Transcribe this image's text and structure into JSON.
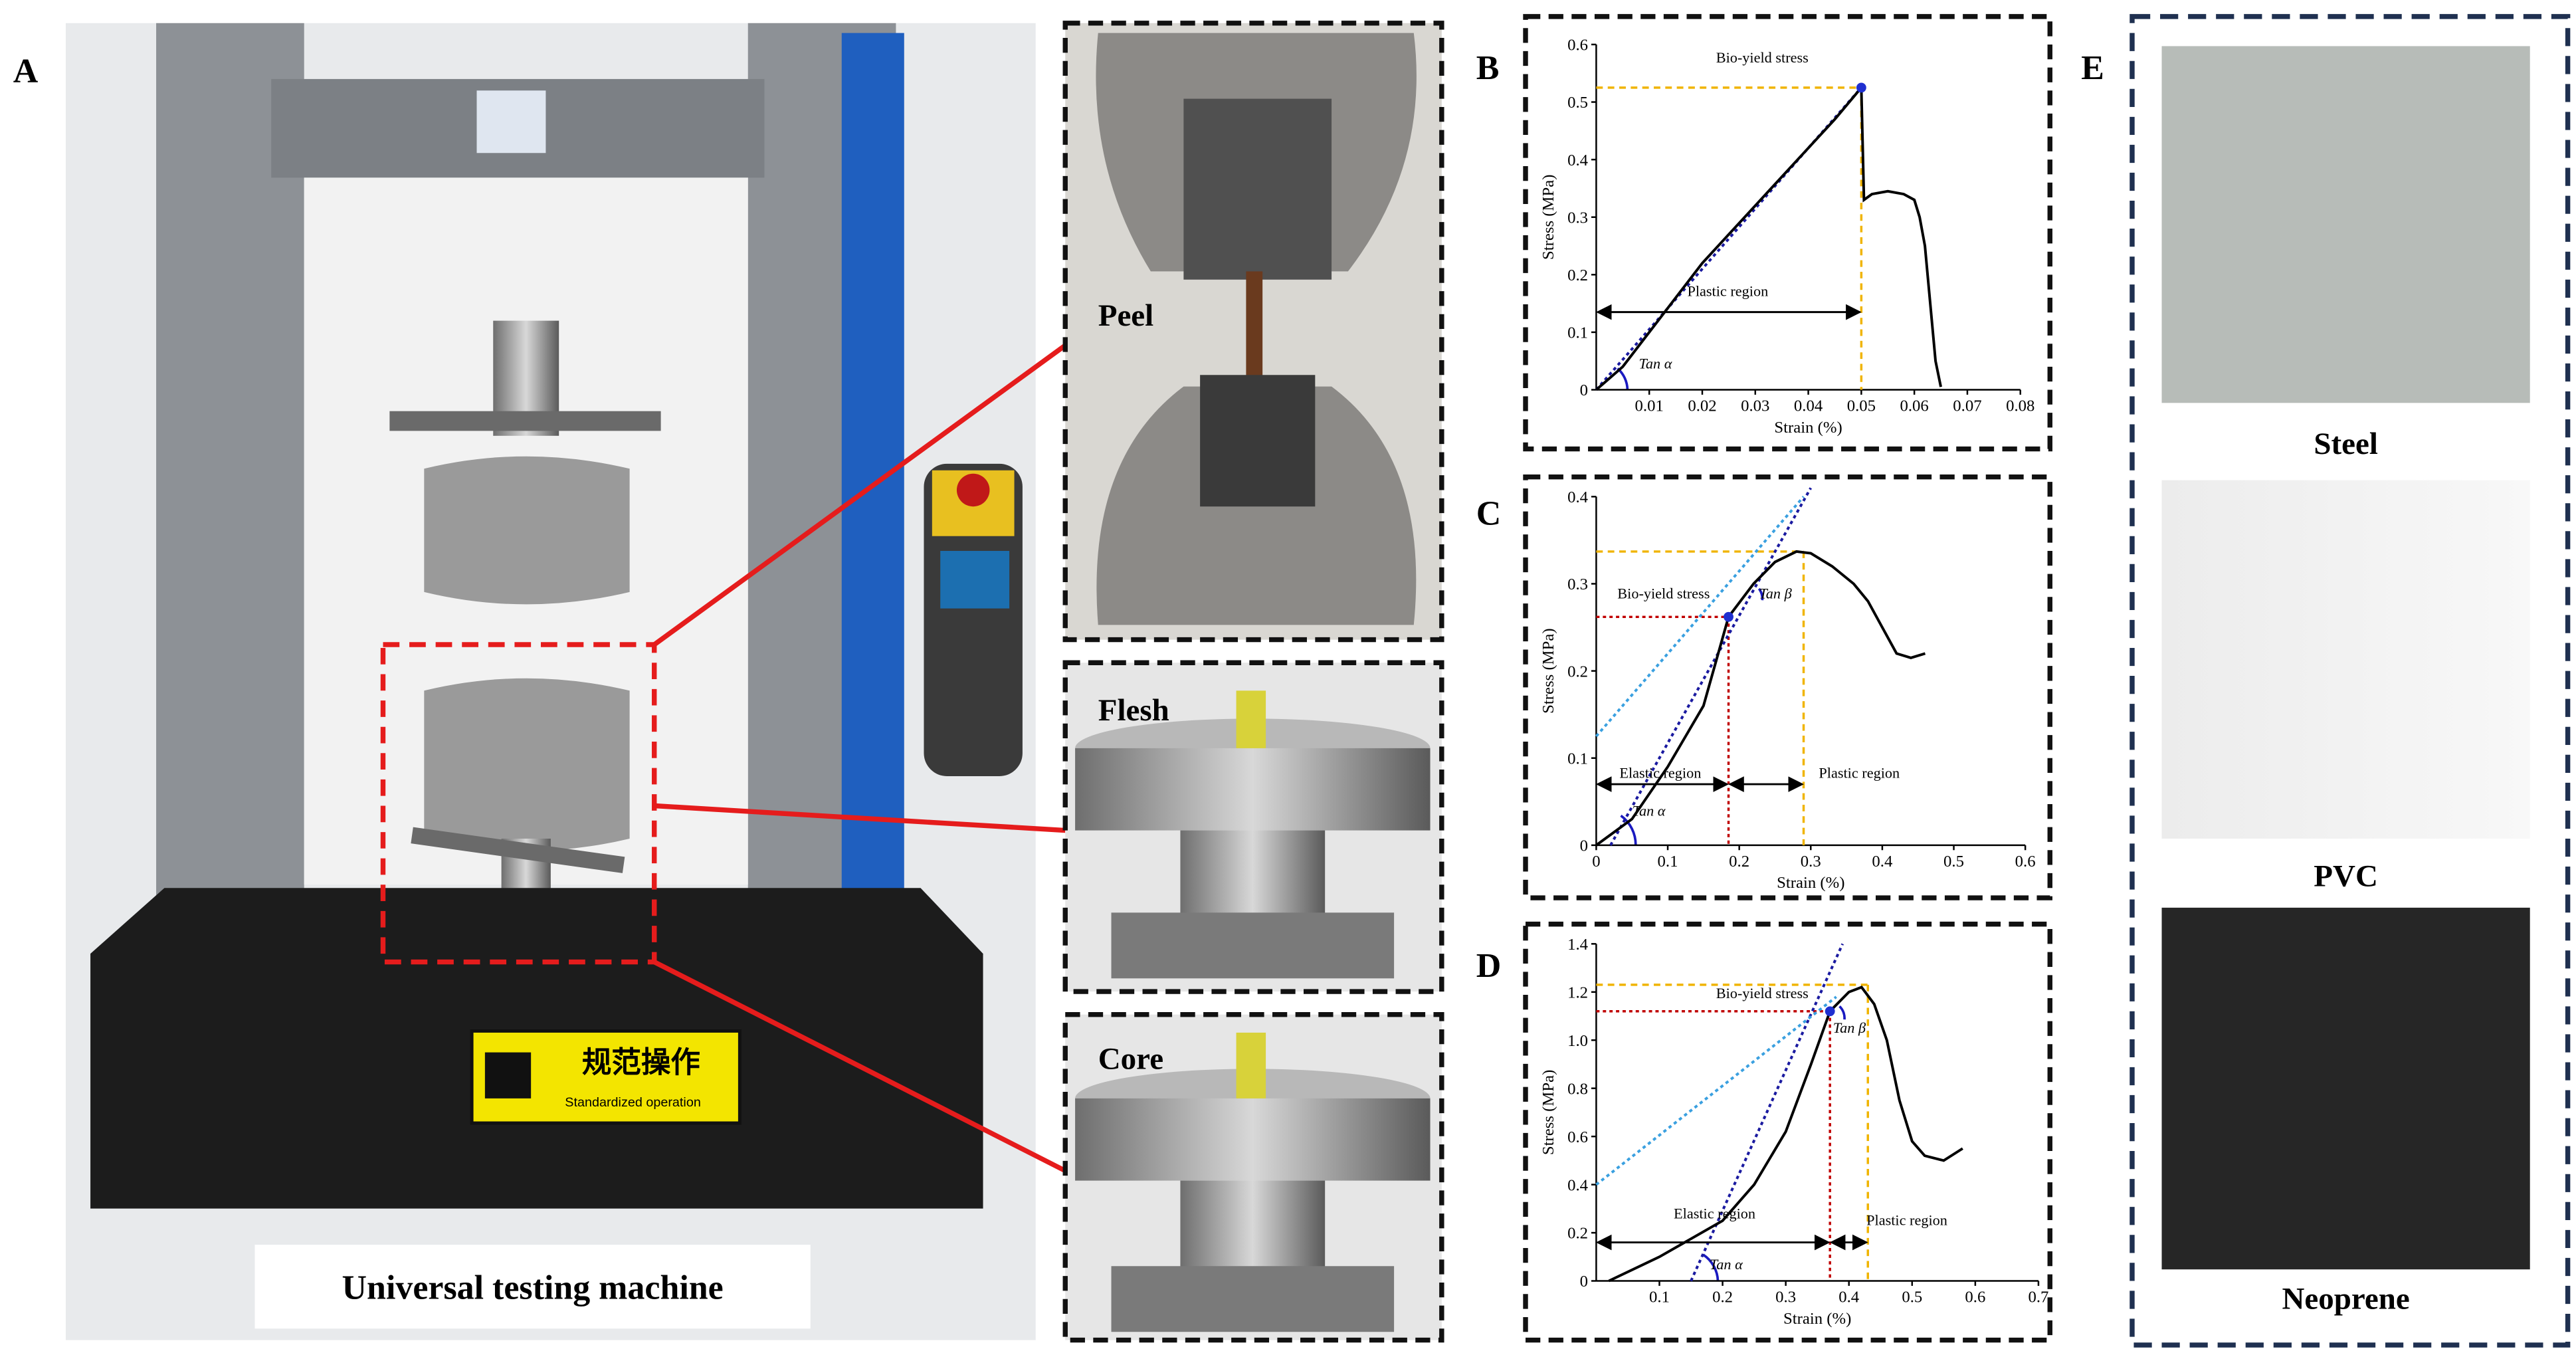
{
  "figure": {
    "panel_labels": [
      "A",
      "B",
      "C",
      "D",
      "E"
    ],
    "machine_label": "Universal testing machine",
    "sign": [
      "规范操作",
      "Standardized operation"
    ],
    "photo_labels": [
      "Peel",
      "Flesh",
      "Core"
    ],
    "materials": [
      "Steel",
      "PVC",
      "Neoprene"
    ]
  },
  "chart_data": [
    {
      "type": "line",
      "xlabel": "Strain (%)",
      "ylabel": "Stress (MPa)",
      "color": "#000000",
      "x": [
        0,
        0.005,
        0.01,
        0.015,
        0.02,
        0.025,
        0.03,
        0.035,
        0.04,
        0.045,
        0.05,
        0.0505,
        0.052,
        0.055,
        0.058,
        0.06,
        0.061,
        0.062,
        0.063,
        0.064,
        0.065
      ],
      "values": [
        0,
        0.04,
        0.1,
        0.16,
        0.22,
        0.27,
        0.32,
        0.37,
        0.42,
        0.47,
        0.525,
        0.33,
        0.34,
        0.345,
        0.34,
        0.33,
        0.3,
        0.25,
        0.15,
        0.05,
        0.005
      ],
      "xlim": [
        0,
        0.08
      ],
      "xticks": [
        0.01,
        0.02,
        0.03,
        0.04,
        0.05,
        0.06,
        0.07,
        0.08
      ],
      "ylim": [
        0,
        0.6
      ],
      "yticks": [
        0,
        0.1,
        0.2,
        0.3,
        0.4,
        0.5,
        0.6
      ],
      "yield_point": {
        "x": 0.05,
        "y": 0.525,
        "color": "#1f2fd0"
      },
      "guides": [
        {
          "x": 0.05,
          "y": 0.525,
          "color": "#f0b400"
        }
      ],
      "tangents": [
        {
          "x": [
            0,
            0.05
          ],
          "y": [
            0,
            0.525
          ],
          "color": "#1a1aa0"
        }
      ],
      "regions": [
        {
          "label": "Plastic region",
          "from": 0,
          "to": 0.05
        }
      ],
      "annotations": [
        "Bio-yield stress",
        "Tan α"
      ]
    },
    {
      "type": "line",
      "xlabel": "Strain (%)",
      "ylabel": "Stress (MPa)",
      "color": "#000000",
      "x": [
        0,
        0.05,
        0.1,
        0.15,
        0.185,
        0.22,
        0.25,
        0.28,
        0.3,
        0.33,
        0.36,
        0.38,
        0.4,
        0.42,
        0.44,
        0.46
      ],
      "values": [
        0,
        0.03,
        0.09,
        0.16,
        0.262,
        0.3,
        0.325,
        0.337,
        0.335,
        0.32,
        0.3,
        0.28,
        0.25,
        0.22,
        0.215,
        0.22
      ],
      "xlim": [
        0,
        0.6
      ],
      "xticks": [
        0,
        0.1,
        0.2,
        0.3,
        0.4,
        0.5,
        0.6
      ],
      "ylim": [
        0,
        0.4
      ],
      "yticks": [
        0,
        0.1,
        0.2,
        0.3,
        0.4
      ],
      "yield_point": {
        "x": 0.185,
        "y": 0.262,
        "color": "#1f2fd0"
      },
      "guides": [
        {
          "x": 0.185,
          "y": 0.262,
          "color": "#c00000"
        },
        {
          "x": 0.29,
          "y": 0.337,
          "color": "#f0b400"
        }
      ],
      "tangents": [
        {
          "x": [
            0.02,
            0.3
          ],
          "y": [
            0,
            0.41
          ],
          "color": "#1a1aa0"
        },
        {
          "x": [
            0,
            0.29
          ],
          "y": [
            0.125,
            0.4
          ],
          "color": "#3aa0e0"
        }
      ],
      "regions": [
        {
          "label": "Elastic region",
          "from": 0,
          "to": 0.185
        },
        {
          "label": "Plastic region",
          "from": 0.185,
          "to": 0.29
        }
      ],
      "annotations": [
        "Bio-yield stress",
        "Tan β",
        "Tan α"
      ]
    },
    {
      "type": "line",
      "xlabel": "Strain (%)",
      "ylabel": "Stress (MPa)",
      "color": "#000000",
      "x": [
        0.02,
        0.1,
        0.2,
        0.25,
        0.3,
        0.34,
        0.37,
        0.4,
        0.42,
        0.44,
        0.46,
        0.48,
        0.5,
        0.52,
        0.55,
        0.58
      ],
      "values": [
        0,
        0.1,
        0.25,
        0.4,
        0.62,
        0.9,
        1.12,
        1.2,
        1.22,
        1.15,
        1.0,
        0.75,
        0.58,
        0.52,
        0.5,
        0.55
      ],
      "xlim": [
        0,
        0.7
      ],
      "xticks": [
        0.1,
        0.2,
        0.3,
        0.4,
        0.5,
        0.6,
        0.7
      ],
      "ylim": [
        0,
        1.4
      ],
      "yticks": [
        0,
        0.2,
        0.4,
        0.6,
        0.8,
        {
          "value": 1,
          "label": "1.0"
        },
        1.2,
        1.4
      ],
      "yield_point": {
        "x": 0.37,
        "y": 1.12,
        "color": "#1f2fd0"
      },
      "guides": [
        {
          "x": 0.37,
          "y": 1.12,
          "color": "#c00000"
        },
        {
          "x": 0.43,
          "y": 1.23,
          "color": "#f0b400"
        }
      ],
      "tangents": [
        {
          "x": [
            0.15,
            0.39
          ],
          "y": [
            0,
            1.4
          ],
          "color": "#1a1aa0"
        },
        {
          "x": [
            0,
            0.38
          ],
          "y": [
            0.4,
            1.18
          ],
          "color": "#3aa0e0"
        }
      ],
      "regions": [
        {
          "label": "Elastic region",
          "from": 0,
          "to": 0.37
        },
        {
          "label": "Plastic region",
          "from": 0.37,
          "to": 0.43
        }
      ],
      "annotations": [
        "Bio-yield stress",
        "Tan β",
        "Tan α"
      ]
    }
  ]
}
